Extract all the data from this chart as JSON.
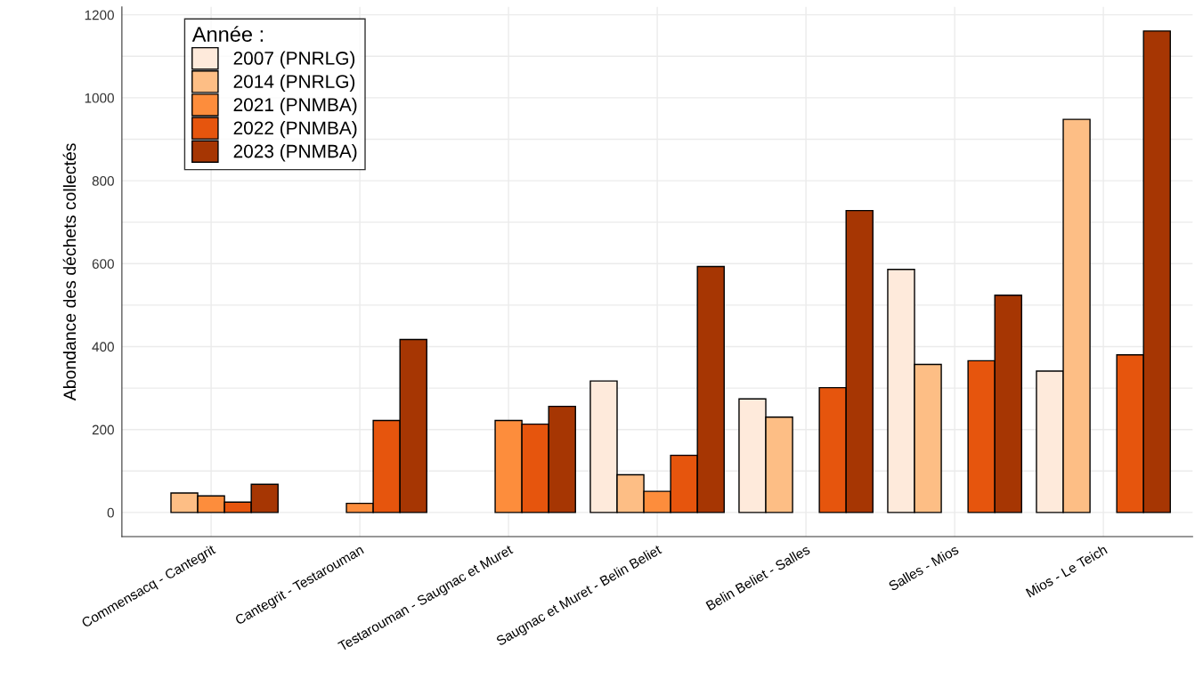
{
  "chart_data": {
    "type": "bar",
    "ylabel": "Abondance des déchets collectés",
    "legend_title": "Année :",
    "categories": [
      "Commensacq - Cantegrit",
      "Cantegrit - Testarouman",
      "Testarouman - Saugnac et Muret",
      "Saugnac et Muret - Belin Beliet",
      "Belin Beliet - Salles",
      "Salles - Mios",
      "Mios - Le Teich"
    ],
    "series": [
      {
        "name": "2007 (PNRLG)",
        "color": "#feeadb",
        "values": [
          null,
          null,
          null,
          317,
          274,
          586,
          341
        ]
      },
      {
        "name": "2014 (PNRLG)",
        "color": "#fdbe85",
        "values": [
          47,
          null,
          null,
          91,
          230,
          357,
          948
        ]
      },
      {
        "name": "2021 (PNMBA)",
        "color": "#fd8d3c",
        "values": [
          40,
          22,
          222,
          51,
          null,
          null,
          null
        ]
      },
      {
        "name": "2022 (PNMBA)",
        "color": "#e6550d",
        "values": [
          25,
          222,
          213,
          138,
          301,
          366,
          380
        ]
      },
      {
        "name": "2023 (PNMBA)",
        "color": "#a63603",
        "values": [
          68,
          417,
          256,
          593,
          728,
          524,
          1161
        ]
      }
    ],
    "ylim": [
      -58,
      1219
    ],
    "yticks": [
      0,
      {
        "value": 100,
        "label": null
      },
      200,
      {
        "value": 300,
        "label": null
      },
      400,
      {
        "value": 500,
        "label": null
      },
      600,
      {
        "value": 700,
        "label": null
      },
      800,
      {
        "value": 900,
        "label": null
      },
      1000,
      {
        "value": 1100,
        "label": null
      },
      1200
    ],
    "grid": true,
    "legend": "top left"
  }
}
